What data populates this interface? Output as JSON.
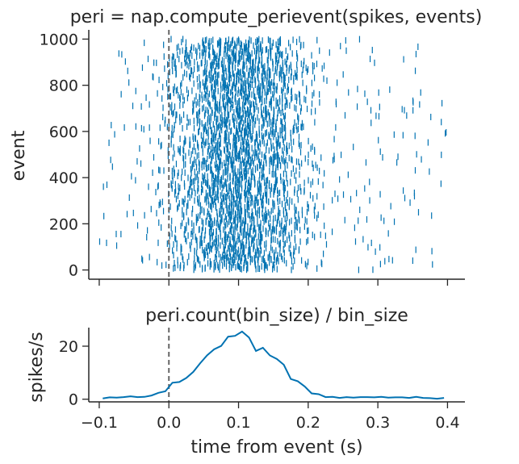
{
  "chart_data": [
    {
      "type": "scatter",
      "title": "peri = nap.compute_perievent(spikes, events)",
      "xlabel": "",
      "ylabel": "event",
      "xlim": [
        -0.115,
        0.425
      ],
      "ylim": [
        -40,
        1040
      ],
      "x_ticks": [
        -0.1,
        0.0,
        0.1,
        0.2,
        0.3,
        0.4
      ],
      "y_ticks": [
        0,
        200,
        400,
        600,
        800,
        1000
      ],
      "event_marker_x": 0.0,
      "color": "#0072b2",
      "n_events": 1000,
      "mark": "vertical tick per spike"
    },
    {
      "type": "line",
      "title": "peri.count(bin_size) / bin_size",
      "xlabel": "time from event (s)",
      "ylabel": "spikes/s",
      "xlim": [
        -0.115,
        0.425
      ],
      "ylim": [
        -1,
        27
      ],
      "x_ticks": [
        -0.1,
        0.0,
        0.1,
        0.2,
        0.3,
        0.4
      ],
      "x_tick_labels": [
        "−0.1",
        "0.0",
        "0.1",
        "0.2",
        "0.3",
        "0.4"
      ],
      "y_ticks": [
        0,
        20
      ],
      "event_marker_x": 0.0,
      "color": "#0072b2",
      "x": [
        -0.095,
        -0.085,
        -0.075,
        -0.065,
        -0.055,
        -0.045,
        -0.035,
        -0.025,
        -0.015,
        -0.005,
        0.005,
        0.015,
        0.025,
        0.035,
        0.045,
        0.055,
        0.065,
        0.075,
        0.085,
        0.095,
        0.105,
        0.115,
        0.125,
        0.135,
        0.145,
        0.155,
        0.165,
        0.175,
        0.185,
        0.195,
        0.205,
        0.215,
        0.225,
        0.235,
        0.245,
        0.255,
        0.265,
        0.275,
        0.285,
        0.295,
        0.305,
        0.315,
        0.325,
        0.335,
        0.345,
        0.355,
        0.365,
        0.375,
        0.385,
        0.395
      ],
      "values": [
        0.3,
        0.7,
        0.6,
        0.8,
        1.1,
        0.8,
        0.9,
        1.4,
        2.4,
        3.0,
        6.2,
        6.5,
        8.0,
        10.3,
        13.6,
        16.6,
        18.8,
        20.1,
        23.6,
        23.9,
        25.5,
        23.3,
        18.2,
        19.4,
        16.5,
        15.2,
        13.0,
        7.6,
        6.8,
        4.8,
        2.2,
        1.9,
        0.8,
        0.9,
        0.5,
        0.8,
        0.6,
        0.8,
        0.8,
        0.7,
        0.9,
        0.6,
        0.7,
        0.7,
        0.5,
        0.9,
        0.5,
        0.4,
        0.2,
        0.5
      ]
    }
  ]
}
